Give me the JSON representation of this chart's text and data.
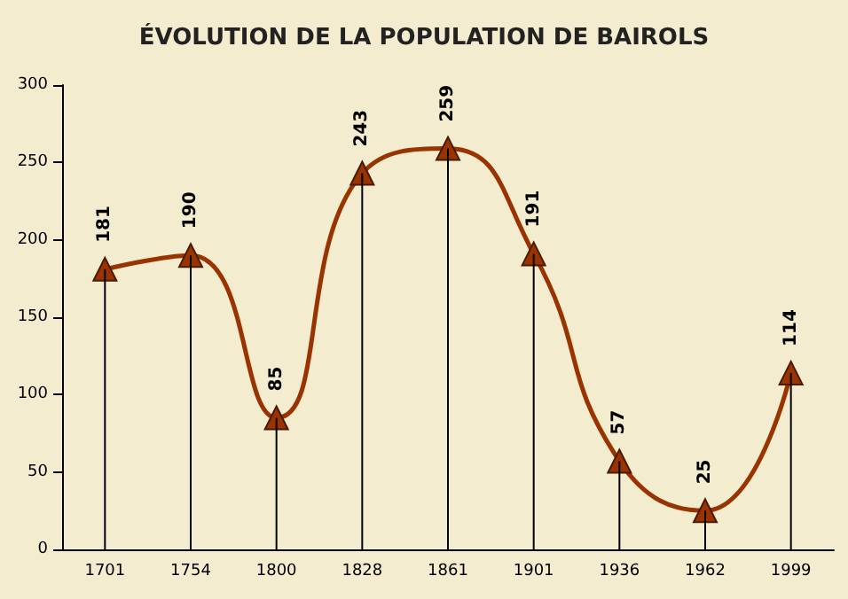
{
  "chart_data": {
    "type": "line",
    "title": "ÉVOLUTION DE LA POPULATION DE BAIROLS",
    "categories": [
      "1701",
      "1754",
      "1800",
      "1828",
      "1861",
      "1901",
      "1936",
      "1962",
      "1999"
    ],
    "series": [
      {
        "type": "bar",
        "color": "#000000",
        "values": [
          181,
          190,
          85,
          243,
          259,
          191,
          57,
          25,
          114
        ]
      },
      {
        "color": "#993300",
        "values": [
          181,
          190,
          85,
          243,
          259,
          191,
          57,
          25,
          114
        ],
        "value_labels": [
          "181",
          "190",
          "85",
          "243",
          "259",
          "191",
          "57",
          "25",
          "114"
        ]
      }
    ],
    "ylim": [
      0,
      300
    ],
    "yticks": [
      0,
      50,
      100,
      150,
      200,
      250,
      300
    ],
    "grid": false,
    "marker": "triangle",
    "line_style": "solid"
  }
}
